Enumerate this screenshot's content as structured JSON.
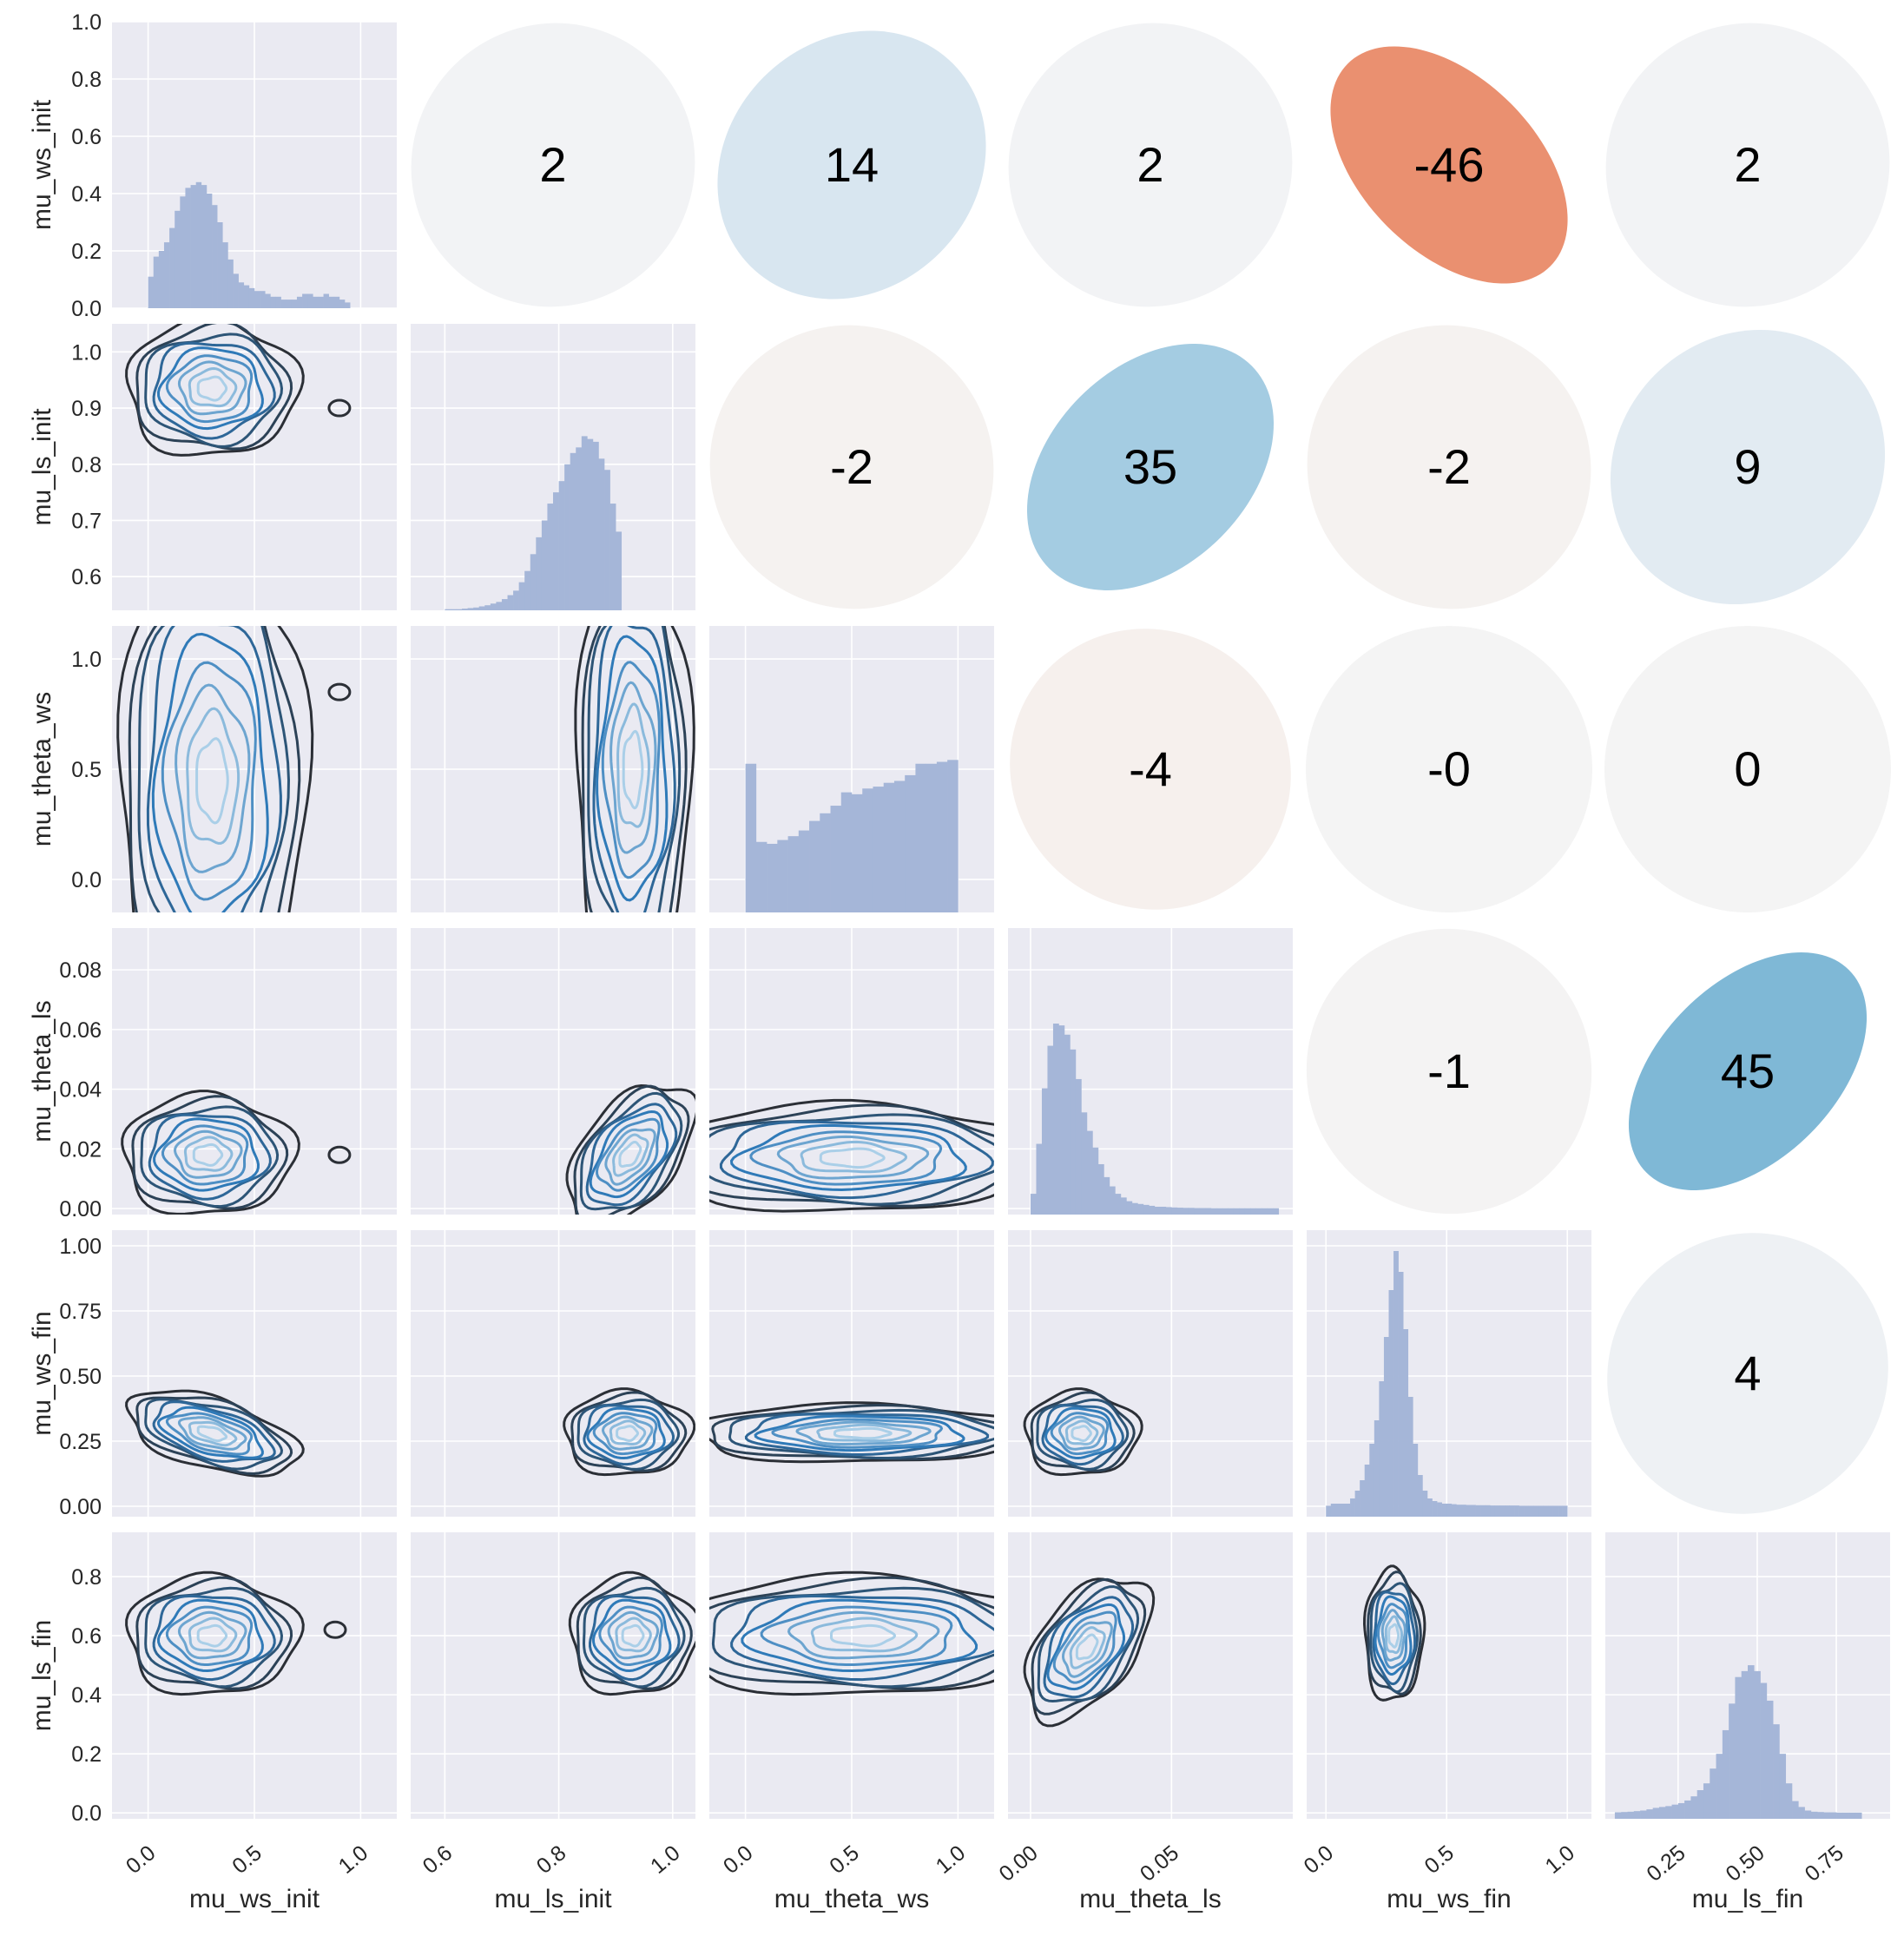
{
  "chart_data": {
    "type": "pairplot",
    "variables": [
      "mu_ws_init",
      "mu_ls_init",
      "mu_theta_ws",
      "mu_theta_ls",
      "mu_ws_fin",
      "mu_ls_fin"
    ],
    "upper_panels": "correlation ellipses (coefficient x100)",
    "lower_panels": "kde contour",
    "diagonal_panels": "histogram",
    "correlations": [
      {
        "row": "mu_ws_init",
        "col": "mu_ls_init",
        "value": 2,
        "label": "2",
        "color": "#f2f3f5"
      },
      {
        "row": "mu_ws_init",
        "col": "mu_theta_ws",
        "value": 14,
        "label": "14",
        "color": "#d8e6f0"
      },
      {
        "row": "mu_ws_init",
        "col": "mu_theta_ls",
        "value": 2,
        "label": "2",
        "color": "#f2f3f5"
      },
      {
        "row": "mu_ws_init",
        "col": "mu_ws_fin",
        "value": -46,
        "label": "-46",
        "color": "#ea9070"
      },
      {
        "row": "mu_ws_init",
        "col": "mu_ls_fin",
        "value": 2,
        "label": "2",
        "color": "#f2f3f5"
      },
      {
        "row": "mu_ls_init",
        "col": "mu_theta_ws",
        "value": -2,
        "label": "-2",
        "color": "#f5f2f0"
      },
      {
        "row": "mu_ls_init",
        "col": "mu_theta_ls",
        "value": 35,
        "label": "35",
        "color": "#a4cce2"
      },
      {
        "row": "mu_ls_init",
        "col": "mu_ws_fin",
        "value": -2,
        "label": "-2",
        "color": "#f5f2f0"
      },
      {
        "row": "mu_ls_init",
        "col": "mu_ls_fin",
        "value": 9,
        "label": "9",
        "color": "#e2ebf2"
      },
      {
        "row": "mu_theta_ws",
        "col": "mu_theta_ls",
        "value": -4,
        "label": "-4",
        "color": "#f6f0ed"
      },
      {
        "row": "mu_theta_ws",
        "col": "mu_ws_fin",
        "value": 0,
        "label": "-0",
        "color": "#f4f4f4"
      },
      {
        "row": "mu_theta_ws",
        "col": "mu_ls_fin",
        "value": 0,
        "label": "0",
        "color": "#f4f4f4"
      },
      {
        "row": "mu_theta_ls",
        "col": "mu_ws_fin",
        "value": -1,
        "label": "-1",
        "color": "#f4f3f3"
      },
      {
        "row": "mu_theta_ls",
        "col": "mu_ls_fin",
        "value": 45,
        "label": "45",
        "color": "#7fb8d6"
      },
      {
        "row": "mu_ws_fin",
        "col": "mu_ls_fin",
        "value": 4,
        "label": "4",
        "color": "#eef1f4"
      }
    ],
    "histograms": [
      {
        "variable": "mu_ws_init",
        "xlim": [
          -0.17,
          1.17
        ],
        "ylim": [
          0,
          1.0
        ],
        "yticks": [
          "0.0",
          "0.2",
          "0.4",
          "0.6",
          "0.8",
          "1.0"
        ],
        "bin_start": 0.0,
        "bin_width": 0.025,
        "values": [
          0.11,
          0.18,
          0.2,
          0.23,
          0.28,
          0.34,
          0.39,
          0.42,
          0.43,
          0.44,
          0.43,
          0.4,
          0.36,
          0.3,
          0.23,
          0.17,
          0.12,
          0.09,
          0.08,
          0.07,
          0.06,
          0.06,
          0.05,
          0.04,
          0.04,
          0.03,
          0.03,
          0.03,
          0.04,
          0.05,
          0.05,
          0.04,
          0.04,
          0.05,
          0.04,
          0.04,
          0.03,
          0.02
        ]
      },
      {
        "variable": "mu_ls_init",
        "xlim": [
          0.54,
          1.04
        ],
        "ylim": [
          0.54,
          1.05
        ],
        "yticks": [
          "0.6",
          "0.7",
          "0.8",
          "0.9",
          "1.0"
        ],
        "bin_start": 0.6,
        "bin_width": 0.01,
        "values": [
          0.002,
          0.002,
          0.002,
          0.003,
          0.004,
          0.005,
          0.007,
          0.009,
          0.012,
          0.015,
          0.02,
          0.027,
          0.035,
          0.05,
          0.07,
          0.1,
          0.13,
          0.16,
          0.19,
          0.21,
          0.23,
          0.26,
          0.28,
          0.29,
          0.31,
          0.305,
          0.3,
          0.27,
          0.25,
          0.19,
          0.14
        ]
      },
      {
        "variable": "mu_theta_ws",
        "xlim": [
          -0.17,
          1.17
        ],
        "ylim": [
          -0.15,
          1.15
        ],
        "yticks": [
          "0.0",
          "0.5",
          "1.0"
        ],
        "bin_start": 0.0,
        "bin_width": 0.05,
        "values": [
          0.78,
          0.37,
          0.36,
          0.38,
          0.4,
          0.43,
          0.48,
          0.52,
          0.56,
          0.63,
          0.62,
          0.65,
          0.66,
          0.68,
          0.69,
          0.72,
          0.78,
          0.78,
          0.79,
          0.8
        ]
      },
      {
        "variable": "mu_theta_ls",
        "xlim": [
          -0.008,
          0.093
        ],
        "ylim": [
          -0.002,
          0.094
        ],
        "yticks": [
          "0.00",
          "0.02",
          "0.04",
          "0.06",
          "0.08"
        ],
        "bin_start": 0.0,
        "bin_width": 0.002,
        "values": [
          0.08,
          0.35,
          0.65,
          0.88,
          1.0,
          0.99,
          0.94,
          0.86,
          0.7,
          0.52,
          0.42,
          0.33,
          0.24,
          0.17,
          0.12,
          0.08,
          0.06,
          0.04,
          0.03,
          0.025,
          0.02,
          0.015,
          0.01,
          0.01,
          0.008,
          0.006,
          0.005,
          0.004,
          0.004,
          0.003,
          0.003,
          0.003,
          0.002,
          0.002,
          0.002,
          0.002,
          0.002,
          0.002,
          0.002,
          0.002,
          0.002,
          0.002,
          0.002,
          0.002
        ]
      },
      {
        "variable": "mu_ws_fin",
        "xlim": [
          -0.08,
          1.1
        ],
        "ylim": [
          -0.04,
          1.06
        ],
        "yticks": [
          "0.00",
          "0.25",
          "0.50",
          "0.75",
          "1.00"
        ],
        "bin_start": 0.0,
        "bin_width": 0.02,
        "values": [
          0.002,
          0.01,
          0.01,
          0.01,
          0.01,
          0.03,
          0.06,
          0.1,
          0.16,
          0.24,
          0.33,
          0.48,
          0.65,
          0.83,
          0.98,
          0.9,
          0.68,
          0.42,
          0.24,
          0.12,
          0.06,
          0.03,
          0.02,
          0.015,
          0.01,
          0.01,
          0.008,
          0.006,
          0.006,
          0.005,
          0.005,
          0.004,
          0.004,
          0.004,
          0.003,
          0.003,
          0.003,
          0.003,
          0.003,
          0.003,
          0.002,
          0.002,
          0.002,
          0.002,
          0.002,
          0.002,
          0.002,
          0.002,
          0.002,
          0.002
        ]
      },
      {
        "variable": "mu_ls_fin",
        "xlim": [
          0.02,
          0.92
        ],
        "ylim": [
          -0.02,
          0.95
        ],
        "yticks": [
          "0.0",
          "0.2",
          "0.4",
          "0.6",
          "0.8"
        ],
        "bin_start": 0.05,
        "bin_width": 0.02,
        "values": [
          0.002,
          0.003,
          0.004,
          0.006,
          0.008,
          0.012,
          0.017,
          0.02,
          0.023,
          0.028,
          0.033,
          0.042,
          0.056,
          0.077,
          0.1,
          0.15,
          0.2,
          0.28,
          0.37,
          0.46,
          0.48,
          0.5,
          0.48,
          0.44,
          0.38,
          0.3,
          0.2,
          0.1,
          0.04,
          0.02,
          0.008,
          0.004,
          0.003,
          0.002,
          0.002,
          0.001,
          0.001,
          0.001,
          0.001
        ]
      }
    ],
    "kde_panels": [
      {
        "row": "mu_ls_init",
        "col": "mu_ws_init",
        "cx": 0.3,
        "cy": 0.935,
        "sx": 0.2,
        "sy": 0.06,
        "rho": 0.0,
        "skew": 0.0,
        "extra": {
          "x": 0.9,
          "y": 0.9
        }
      },
      {
        "row": "mu_theta_ws",
        "col": "mu_ws_init",
        "cx": 0.3,
        "cy": 0.45,
        "sx": 0.22,
        "sy": 0.55,
        "rho": 0.0,
        "skew": 0.0,
        "extra": {
          "x": 0.9,
          "y": 0.85
        }
      },
      {
        "row": "mu_theta_ws",
        "col": "mu_ls_init",
        "cx": 0.93,
        "cy": 0.5,
        "sx": 0.05,
        "sy": 0.5,
        "rho": 0.0,
        "skew": 0.0
      },
      {
        "row": "mu_theta_ls",
        "col": "mu_ws_init",
        "cx": 0.28,
        "cy": 0.018,
        "sx": 0.2,
        "sy": 0.01,
        "rho": 0.0,
        "skew": 0.0,
        "extra": {
          "x": 0.9,
          "y": 0.018
        }
      },
      {
        "row": "mu_theta_ls",
        "col": "mu_ls_init",
        "cx": 0.925,
        "cy": 0.018,
        "sx": 0.055,
        "sy": 0.012,
        "rho": 0.5,
        "skew": 0.0
      },
      {
        "row": "mu_theta_ls",
        "col": "mu_theta_ws",
        "cx": 0.5,
        "cy": 0.017,
        "sx": 0.45,
        "sy": 0.009,
        "rho": 0.0,
        "skew": 0.0
      },
      {
        "row": "mu_ws_fin",
        "col": "mu_ws_init",
        "cx": 0.3,
        "cy": 0.28,
        "sx": 0.2,
        "sy": 0.08,
        "rho": -0.5,
        "skew": 0.0
      },
      {
        "row": "mu_ws_fin",
        "col": "mu_ls_init",
        "cx": 0.92,
        "cy": 0.28,
        "sx": 0.055,
        "sy": 0.08,
        "rho": 0.0,
        "skew": 0.0
      },
      {
        "row": "mu_ws_fin",
        "col": "mu_theta_ws",
        "cx": 0.55,
        "cy": 0.28,
        "sx": 0.4,
        "sy": 0.055,
        "rho": 0.0,
        "skew": 0.0
      },
      {
        "row": "mu_ws_fin",
        "col": "mu_theta_ls",
        "cx": 0.018,
        "cy": 0.28,
        "sx": 0.01,
        "sy": 0.08,
        "rho": 0.0,
        "skew": 0.0
      },
      {
        "row": "mu_ls_fin",
        "col": "mu_ws_init",
        "cx": 0.3,
        "cy": 0.6,
        "sx": 0.2,
        "sy": 0.1,
        "rho": 0.0,
        "skew": 0.0,
        "extra": {
          "x": 0.88,
          "y": 0.62
        }
      },
      {
        "row": "mu_ls_fin",
        "col": "mu_ls_init",
        "cx": 0.93,
        "cy": 0.6,
        "sx": 0.055,
        "sy": 0.1,
        "rho": 0.0,
        "skew": 0.0
      },
      {
        "row": "mu_ls_fin",
        "col": "mu_theta_ws",
        "cx": 0.55,
        "cy": 0.6,
        "sx": 0.45,
        "sy": 0.1,
        "rho": 0.0,
        "skew": 0.0
      },
      {
        "row": "mu_ls_fin",
        "col": "mu_theta_ls",
        "cx": 0.02,
        "cy": 0.56,
        "sx": 0.011,
        "sy": 0.12,
        "rho": 0.5,
        "skew": 0.0
      },
      {
        "row": "mu_ls_fin",
        "col": "mu_ws_fin",
        "cx": 0.28,
        "cy": 0.6,
        "sx": 0.06,
        "sy": 0.11,
        "rho": 0.0,
        "skew": 0.0
      }
    ],
    "x_ticks": [
      {
        "variable": "mu_ws_init",
        "ticks": [
          {
            "v": 0.0,
            "label": "0.0"
          },
          {
            "v": 0.5,
            "label": "0.5"
          },
          {
            "v": 1.0,
            "label": "1.0"
          }
        ]
      },
      {
        "variable": "mu_ls_init",
        "ticks": [
          {
            "v": 0.6,
            "label": "0.6"
          },
          {
            "v": 0.8,
            "label": "0.8"
          },
          {
            "v": 1.0,
            "label": "1.0"
          }
        ]
      },
      {
        "variable": "mu_theta_ws",
        "ticks": [
          {
            "v": 0.0,
            "label": "0.0"
          },
          {
            "v": 0.5,
            "label": "0.5"
          },
          {
            "v": 1.0,
            "label": "1.0"
          }
        ]
      },
      {
        "variable": "mu_theta_ls",
        "ticks": [
          {
            "v": 0.0,
            "label": "0.00"
          },
          {
            "v": 0.05,
            "label": "0.05"
          }
        ]
      },
      {
        "variable": "mu_ws_fin",
        "ticks": [
          {
            "v": 0.0,
            "label": "0.0"
          },
          {
            "v": 0.5,
            "label": "0.5"
          },
          {
            "v": 1.0,
            "label": "1.0"
          }
        ]
      },
      {
        "variable": "mu_ls_fin",
        "ticks": [
          {
            "v": 0.25,
            "label": "0.25"
          },
          {
            "v": 0.5,
            "label": "0.50"
          },
          {
            "v": 0.75,
            "label": "0.75"
          }
        ]
      }
    ],
    "y_tick_values": [
      [
        0.0,
        0.2,
        0.4,
        0.6,
        0.8,
        1.0
      ],
      [
        0.6,
        0.7,
        0.8,
        0.9,
        1.0
      ],
      [
        0.0,
        0.5,
        1.0
      ],
      [
        0.0,
        0.02,
        0.04,
        0.06,
        0.08
      ],
      [
        0.0,
        0.25,
        0.5,
        0.75,
        1.0
      ],
      [
        0.0,
        0.2,
        0.4,
        0.6,
        0.8
      ]
    ],
    "colors": {
      "panel_bg": "#eaeaf2",
      "grid": "#ffffff",
      "hist": "#a5b6d8",
      "kde_outer": "#2b2f36",
      "kde_mid": "#2f7ab8",
      "kde_inner": "#aacfe8"
    }
  }
}
